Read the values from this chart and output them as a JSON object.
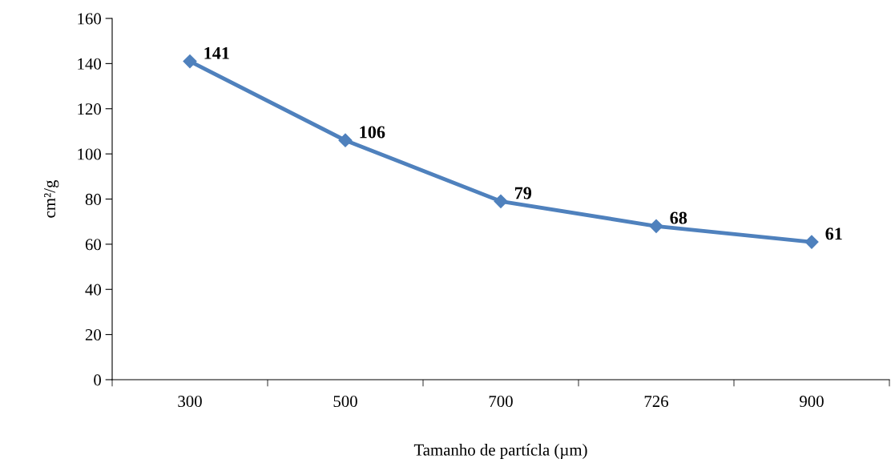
{
  "chart_data": {
    "type": "line",
    "xlabel": "Tamanho de partícla (µm)",
    "ylabel": "cm²/g",
    "categories": [
      "300",
      "500",
      "700",
      "726",
      "900"
    ],
    "series": [
      {
        "color": "#4f81bd",
        "values": [
          141,
          106,
          79,
          68,
          61
        ]
      }
    ],
    "ylim": [
      0,
      160
    ],
    "yticks": [
      0,
      20,
      40,
      60,
      80,
      100,
      120,
      140,
      160
    ],
    "data_labels": true,
    "marker": "diamond",
    "line_style": "solid",
    "grid": false,
    "legend": false
  }
}
